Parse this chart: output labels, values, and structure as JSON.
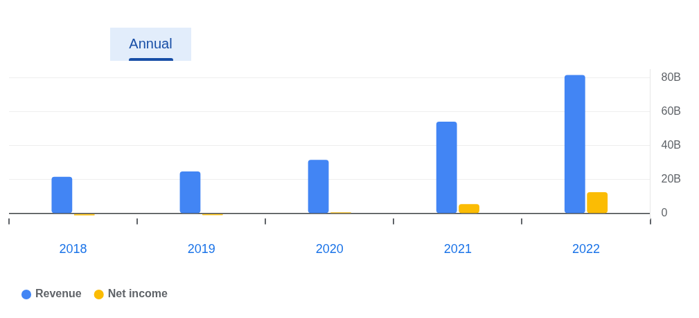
{
  "chart_data": {
    "type": "bar",
    "annotations": [
      "Annual"
    ],
    "categories": [
      "2018",
      "2019",
      "2020",
      "2021",
      "2022"
    ],
    "series": [
      {
        "name": "Revenue",
        "color": "#4285f4",
        "values": [
          21.7,
          24.8,
          31.6,
          54.1,
          81.5
        ]
      },
      {
        "name": "Net income",
        "color": "#fbbc04",
        "values": [
          -1,
          -0.9,
          0.7,
          5.6,
          12.6
        ]
      }
    ],
    "ylim": [
      -3,
      85
    ],
    "yticks": [
      {
        "value": 0,
        "label": "0"
      },
      {
        "value": 20,
        "label": "20B"
      },
      {
        "value": 40,
        "label": "40B"
      },
      {
        "value": 60,
        "label": "60B"
      },
      {
        "value": 80,
        "label": "80B"
      }
    ],
    "grid": "y",
    "legend": "bottom left"
  }
}
